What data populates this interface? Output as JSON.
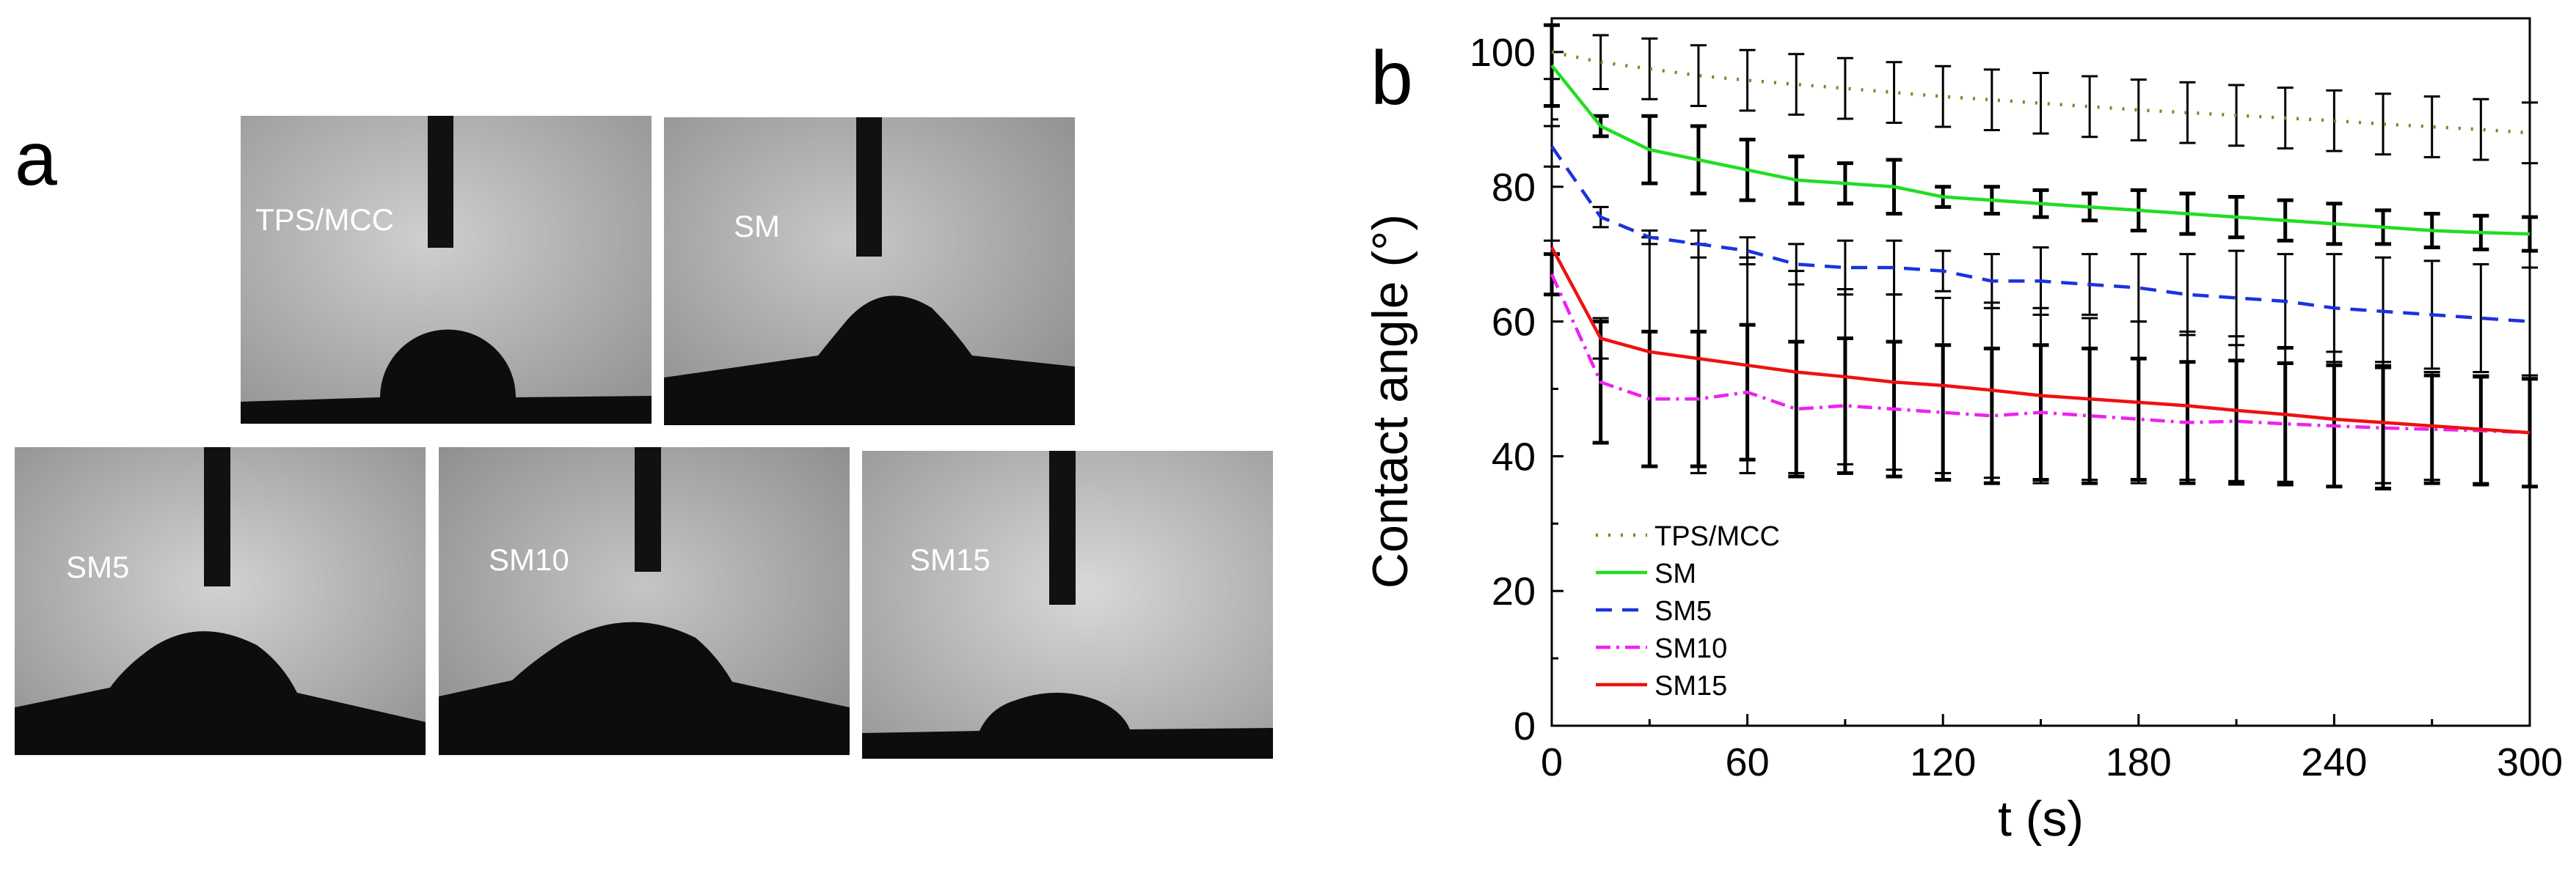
{
  "panel_letters": {
    "a": "a",
    "b": "b"
  },
  "photos": [
    {
      "label": "TPS/MCC"
    },
    {
      "label": "SM"
    },
    {
      "label": "SM5"
    },
    {
      "label": "SM10"
    },
    {
      "label": "SM15"
    }
  ],
  "chart_data": {
    "type": "line",
    "title": "",
    "xlabel": "t (s)",
    "ylabel": "Contact angle (°)",
    "xlim": [
      0,
      300
    ],
    "ylim": [
      0,
      105
    ],
    "xticks": [
      0,
      60,
      120,
      180,
      240,
      300
    ],
    "yticks": [
      0,
      20,
      40,
      60,
      80,
      100
    ],
    "grid": false,
    "legend_position": "lower-left",
    "error_bar_x": [
      0,
      15,
      30,
      45,
      60,
      75,
      90,
      105,
      120,
      135,
      150,
      165,
      180,
      195,
      210,
      225,
      240,
      255,
      270,
      285,
      300
    ],
    "series": [
      {
        "name": "TPS/MCC",
        "color": "#6b8e23",
        "dash": "3,14",
        "x": [
          0,
          15,
          30,
          45,
          60,
          75,
          90,
          105,
          120,
          135,
          150,
          165,
          180,
          195,
          210,
          225,
          240,
          255,
          270,
          285,
          300
        ],
        "y": [
          100,
          98.5,
          97.5,
          96.5,
          95.8,
          95.2,
          94.6,
          94.0,
          93.4,
          92.9,
          92.4,
          91.9,
          91.4,
          91.0,
          90.6,
          90.2,
          89.8,
          89.3,
          88.9,
          88.5,
          88
        ],
        "err": [
          4,
          4,
          4.5,
          4.5,
          4.5,
          4.5,
          4.5,
          4.5,
          4.5,
          4.5,
          4.5,
          4.5,
          4.5,
          4.5,
          4.5,
          4.5,
          4.5,
          4.5,
          4.5,
          4.5,
          4.5
        ]
      },
      {
        "name": "SM",
        "color": "#22dd22",
        "dash": "",
        "x": [
          0,
          15,
          30,
          45,
          60,
          75,
          90,
          105,
          120,
          135,
          150,
          165,
          180,
          195,
          210,
          225,
          240,
          255,
          270,
          285,
          300
        ],
        "y": [
          98,
          89,
          85.5,
          84,
          82.5,
          81,
          80.5,
          80,
          78.5,
          78,
          77.5,
          77,
          76.5,
          76,
          75.5,
          75,
          74.5,
          74,
          73.5,
          73.2,
          73
        ],
        "err": [
          6,
          1.5,
          5,
          5,
          4.5,
          3.5,
          3,
          4,
          1.5,
          2,
          2,
          2,
          3,
          3,
          3,
          3,
          3,
          2.5,
          2.5,
          2.5,
          2.5
        ]
      },
      {
        "name": "SM5",
        "color": "#1a33dd",
        "dash": "22,14",
        "x": [
          0,
          15,
          30,
          45,
          60,
          75,
          90,
          105,
          120,
          135,
          150,
          165,
          180,
          195,
          210,
          225,
          240,
          255,
          270,
          285,
          300
        ],
        "y": [
          86,
          75.5,
          72.5,
          71.5,
          70.5,
          68.5,
          68,
          68,
          67.5,
          66,
          66,
          65.5,
          65,
          64,
          63.5,
          63,
          62,
          61.5,
          61,
          60.5,
          60
        ],
        "err": [
          3,
          1.5,
          1,
          2,
          2,
          3,
          4,
          4,
          3,
          4,
          5,
          4.5,
          5,
          6,
          7,
          7,
          8,
          8,
          8,
          8,
          8
        ]
      },
      {
        "name": "SM10",
        "color": "#ee22ee",
        "dash": "20,8,4,8",
        "x": [
          0,
          15,
          30,
          45,
          60,
          75,
          90,
          105,
          120,
          135,
          150,
          165,
          180,
          195,
          210,
          225,
          240,
          255,
          270,
          285,
          300
        ],
        "y": [
          67,
          51,
          48.5,
          48.5,
          49.5,
          47,
          47.5,
          47,
          46.5,
          46,
          46.5,
          46,
          45.5,
          45,
          45.2,
          44.8,
          44.5,
          44.2,
          44,
          43.8,
          43.5
        ],
        "err": [
          3,
          9,
          10,
          10,
          10,
          10,
          10,
          10,
          10,
          10,
          10,
          10,
          9,
          9,
          9,
          9,
          9,
          9,
          8,
          8,
          8
        ]
      },
      {
        "name": "SM15",
        "color": "#ee1111",
        "dash": "",
        "x": [
          0,
          15,
          30,
          45,
          60,
          75,
          90,
          105,
          120,
          135,
          150,
          165,
          180,
          195,
          210,
          225,
          240,
          255,
          270,
          285,
          300
        ],
        "y": [
          71,
          57.5,
          55.5,
          54.5,
          53.5,
          52.5,
          51.8,
          51,
          50.5,
          49.8,
          49,
          48.5,
          48,
          47.5,
          46.8,
          46.2,
          45.5,
          45,
          44.5,
          44,
          43.5
        ],
        "err": [
          1,
          3,
          17,
          17,
          16,
          15,
          13,
          13,
          13,
          13,
          13,
          12,
          12,
          11,
          11,
          10,
          10,
          9,
          8,
          8,
          8
        ]
      }
    ]
  }
}
